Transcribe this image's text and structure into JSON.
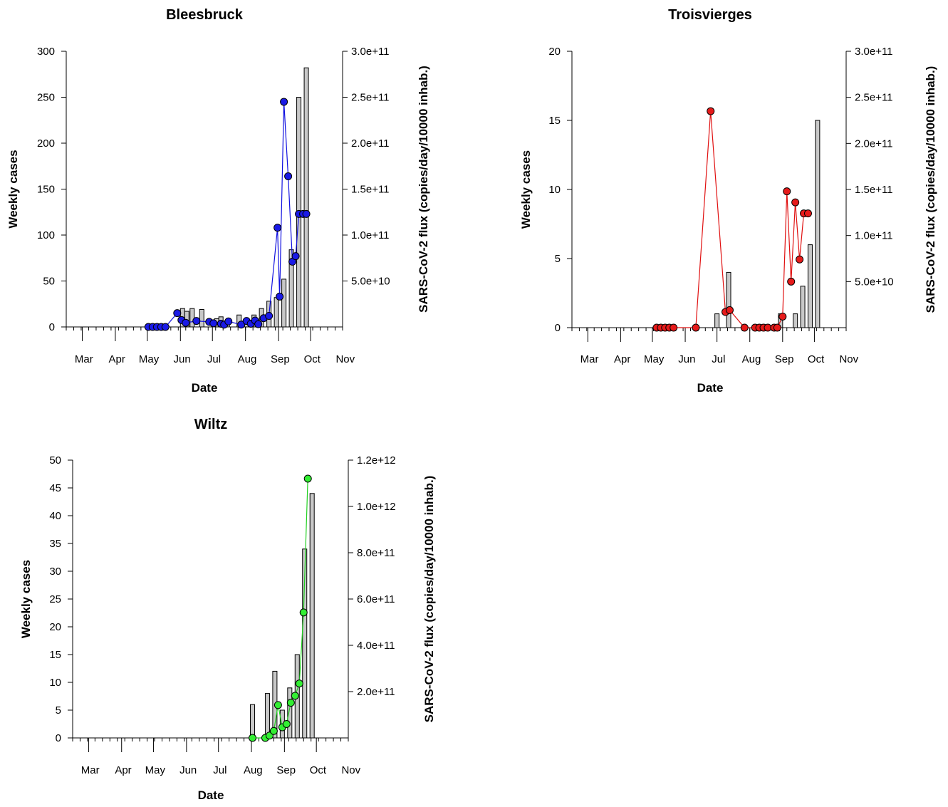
{
  "chart_data": [
    {
      "type": "bar",
      "title": "Bleesbruck",
      "xlabel": "Date",
      "ylabel": "Weekly cases",
      "y2label": "SARS-CoV-2 flux (copies/day/10000 inhab.)",
      "x_ticks": [
        "Mar",
        "Apr",
        "May",
        "Jun",
        "Jul",
        "Aug",
        "Sep",
        "Oct",
        "Nov"
      ],
      "y_ticks": [
        "0",
        "50",
        "100",
        "150",
        "200",
        "250",
        "300"
      ],
      "y2_ticks": [
        "5.0e+10",
        "1.0e+11",
        "1.5e+11",
        "2.0e+11",
        "2.5e+11",
        "3.0e+11"
      ],
      "ylim": [
        0,
        300
      ],
      "y2lim": [
        0,
        300000000000.0
      ],
      "grid": false,
      "line_color": "#1010e0",
      "point_color": "#1a1ae6",
      "series": [
        {
          "type": "bar",
          "x": [
            "2020-06-03",
            "2020-06-07",
            "2020-06-12",
            "2020-06-21",
            "2020-07-05",
            "2020-07-09",
            "2020-07-15",
            "2020-07-26",
            "2020-08-02",
            "2020-08-09",
            "2020-08-16",
            "2020-08-23",
            "2020-08-30",
            "2020-09-06",
            "2020-09-13",
            "2020-09-20",
            "2020-09-27",
            "2020-10-04",
            "2020-10-11",
            "2020-10-18"
          ],
          "values": [
            20,
            17,
            20,
            19,
            9,
            11,
            7,
            13,
            4,
            13,
            20,
            28,
            32,
            52,
            84,
            250,
            282,
            0,
            0,
            0
          ]
        },
        {
          "type": "line",
          "x": [
            "2020-05-02",
            "2020-05-06",
            "2020-05-10",
            "2020-05-14",
            "2020-05-18",
            "2020-05-29",
            "2020-06-02",
            "2020-06-06",
            "2020-06-16",
            "2020-06-28",
            "2020-07-02",
            "2020-07-09",
            "2020-07-12",
            "2020-07-16",
            "2020-07-28",
            "2020-08-02",
            "2020-08-06",
            "2020-08-10",
            "2020-08-13",
            "2020-08-18",
            "2020-08-23",
            "2020-08-31",
            "2020-09-02",
            "2020-09-06",
            "2020-09-10",
            "2020-09-14",
            "2020-09-17",
            "2020-09-20",
            "2020-09-24",
            "2020-09-27"
          ],
          "values": [
            0,
            0,
            0,
            0,
            0,
            15000000000.0,
            7500000000.0,
            4500000000.0,
            6500000000.0,
            5500000000.0,
            4000000000.0,
            3500000000.0,
            2500000000.0,
            6000000000.0,
            2500000000.0,
            6500000000.0,
            3500000000.0,
            7000000000.0,
            3000000000.0,
            9500000000.0,
            12000000000.0,
            108000000000.0,
            33000000000.0,
            245000000000.0,
            164000000000.0,
            71000000000.0,
            77000000000.0,
            123000000000.0,
            123000000000.0,
            123000000000.0
          ]
        }
      ]
    },
    {
      "type": "bar",
      "title": "Troisvierges",
      "xlabel": "Date",
      "ylabel": "Weekly cases",
      "y2label": "SARS-CoV-2 flux (copies/day/10000 inhab.)",
      "x_ticks": [
        "Mar",
        "Apr",
        "May",
        "Jun",
        "Jul",
        "Aug",
        "Sep",
        "Oct",
        "Nov"
      ],
      "y_ticks": [
        "0",
        "5",
        "10",
        "15",
        "20"
      ],
      "y2_ticks": [
        "5.0e+10",
        "1.0e+11",
        "1.5e+11",
        "2.0e+11",
        "2.5e+11",
        "3.0e+11"
      ],
      "ylim": [
        0,
        20
      ],
      "y2lim": [
        0,
        300000000000.0
      ],
      "grid": false,
      "line_color": "#e01010",
      "point_color": "#e61a1a",
      "series": [
        {
          "type": "bar",
          "x": [
            "2020-07-01",
            "2020-07-12",
            "2020-08-30",
            "2020-09-13",
            "2020-09-20",
            "2020-09-27",
            "2020-10-04"
          ],
          "values": [
            1,
            4,
            1,
            1,
            3,
            6,
            15
          ]
        },
        {
          "type": "line",
          "x": [
            "2020-05-05",
            "2020-05-09",
            "2020-05-13",
            "2020-05-17",
            "2020-05-21",
            "2020-06-11",
            "2020-06-25",
            "2020-07-09",
            "2020-07-13",
            "2020-07-27",
            "2020-08-06",
            "2020-08-10",
            "2020-08-14",
            "2020-08-18",
            "2020-08-24",
            "2020-08-27",
            "2020-09-01",
            "2020-09-05",
            "2020-09-09",
            "2020-09-13",
            "2020-09-17",
            "2020-09-21",
            "2020-09-25"
          ],
          "values": [
            0,
            0,
            0,
            0,
            0,
            0,
            235000000000.0,
            17000000000.0,
            19000000000.0,
            0,
            0,
            0,
            0,
            0,
            0,
            0,
            12000000000.0,
            148000000000.0,
            50000000000.0,
            136000000000.0,
            74000000000.0,
            124000000000.0,
            124000000000.0
          ]
        }
      ]
    },
    {
      "type": "bar",
      "title": "Wiltz",
      "xlabel": "Date",
      "ylabel": "Weekly cases",
      "y2label": "SARS-CoV-2 flux (copies/day/10000 inhab.)",
      "x_ticks": [
        "Mar",
        "Apr",
        "May",
        "Jun",
        "Jul",
        "Aug",
        "Sep",
        "Oct",
        "Nov"
      ],
      "y_ticks": [
        "0",
        "5",
        "10",
        "15",
        "20",
        "25",
        "30",
        "35",
        "40",
        "45",
        "50"
      ],
      "y2_ticks": [
        "2.0e+11",
        "4.0e+11",
        "6.0e+11",
        "8.0e+11",
        "1.0e+12",
        "1.2e+12"
      ],
      "ylim": [
        0,
        50
      ],
      "y2lim": [
        0,
        1200000000000.0
      ],
      "grid": false,
      "line_color": "#20d020",
      "point_color": "#33ee33",
      "series": [
        {
          "type": "bar",
          "x": [
            "2020-08-02",
            "2020-08-16",
            "2020-08-23",
            "2020-08-30",
            "2020-09-06",
            "2020-09-13",
            "2020-09-20",
            "2020-09-27"
          ],
          "values": [
            6,
            8,
            12,
            5,
            9,
            15,
            34,
            44
          ]
        },
        {
          "type": "line",
          "x": [
            "2020-08-02",
            "2020-08-14",
            "2020-08-18",
            "2020-08-22",
            "2020-08-26",
            "2020-08-30",
            "2020-09-03",
            "2020-09-07",
            "2020-09-11",
            "2020-09-15",
            "2020-09-19",
            "2020-09-23"
          ],
          "values": [
            0,
            0,
            10000000000.0,
            30000000000.0,
            142000000000.0,
            46000000000.0,
            60000000000.0,
            152000000000.0,
            182000000000.0,
            235000000000.0,
            542000000000.0,
            1120000000000.0
          ]
        }
      ]
    }
  ]
}
